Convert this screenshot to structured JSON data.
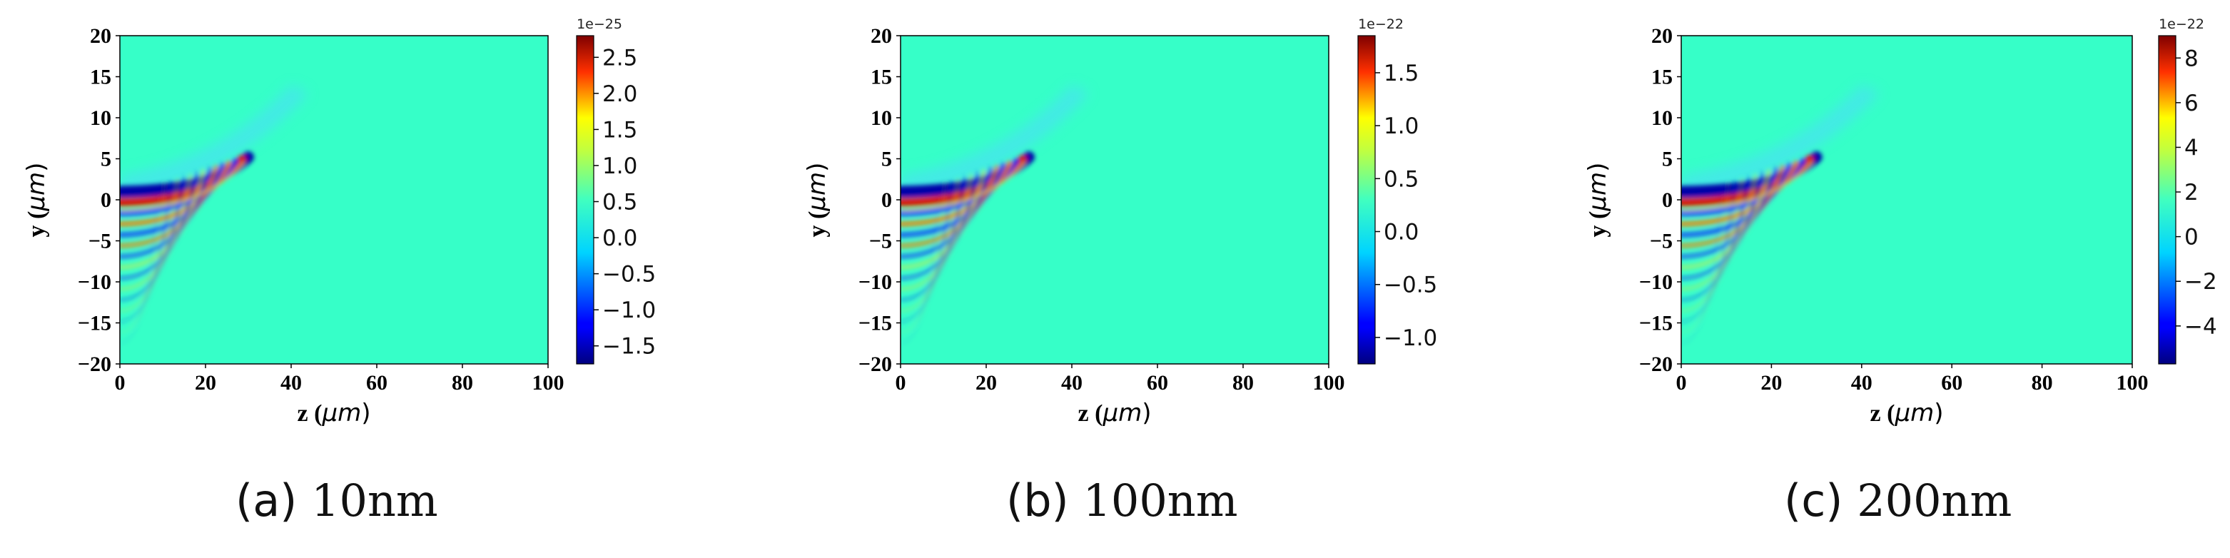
{
  "chart_data": [
    {
      "type": "heatmap",
      "xlabel_prefix": "z (",
      "xlabel_var": "μm",
      "xlabel_suffix": ")",
      "ylabel_prefix": "y (",
      "ylabel_var": "μm",
      "ylabel_suffix": ")",
      "xlim": [
        0,
        100
      ],
      "ylim": [
        -20,
        20
      ],
      "xticks": [
        "0",
        "20",
        "40",
        "60",
        "80",
        "100"
      ],
      "yticks": [
        "20",
        "15",
        "10",
        "5",
        "0",
        "−5",
        "−10",
        "−15",
        "−20"
      ],
      "colorbar": {
        "offset_label": "1e−25",
        "range": [
          -1.75,
          2.8
        ],
        "ticks": [
          {
            "value": 2.5,
            "label": "2.5"
          },
          {
            "value": 2.0,
            "label": "2.0"
          },
          {
            "value": 1.5,
            "label": "1.5"
          },
          {
            "value": 1.0,
            "label": "1.0"
          },
          {
            "value": 0.5,
            "label": "0.5"
          },
          {
            "value": 0.0,
            "label": "0.0"
          },
          {
            "value": -0.5,
            "label": "−0.5"
          },
          {
            "value": -1.0,
            "label": "−1.0"
          },
          {
            "value": -1.5,
            "label": "−1.5"
          }
        ]
      },
      "caption_letter": "(a)",
      "caption_text": "10nm"
    },
    {
      "type": "heatmap",
      "xlabel_prefix": "z (",
      "xlabel_var": "μm",
      "xlabel_suffix": ")",
      "ylabel_prefix": "y (",
      "ylabel_var": "μm",
      "ylabel_suffix": ")",
      "xlim": [
        0,
        100
      ],
      "ylim": [
        -20,
        20
      ],
      "xticks": [
        "0",
        "20",
        "40",
        "60",
        "80",
        "100"
      ],
      "yticks": [
        "20",
        "15",
        "10",
        "5",
        "0",
        "−5",
        "−10",
        "−15",
        "−20"
      ],
      "colorbar": {
        "offset_label": "1e−22",
        "range": [
          -1.25,
          1.85
        ],
        "ticks": [
          {
            "value": 1.5,
            "label": "1.5"
          },
          {
            "value": 1.0,
            "label": "1.0"
          },
          {
            "value": 0.5,
            "label": "0.5"
          },
          {
            "value": 0.0,
            "label": "0.0"
          },
          {
            "value": -0.5,
            "label": "−0.5"
          },
          {
            "value": -1.0,
            "label": "−1.0"
          }
        ]
      },
      "caption_letter": "(b)",
      "caption_text": "100nm"
    },
    {
      "type": "heatmap",
      "xlabel_prefix": "z (",
      "xlabel_var": "μm",
      "xlabel_suffix": ")",
      "ylabel_prefix": "y (",
      "ylabel_var": "μm",
      "ylabel_suffix": ")",
      "xlim": [
        0,
        100
      ],
      "ylim": [
        -20,
        20
      ],
      "xticks": [
        "0",
        "20",
        "40",
        "60",
        "80",
        "100"
      ],
      "yticks": [
        "20",
        "15",
        "10",
        "5",
        "0",
        "−5",
        "−10",
        "−15",
        "−20"
      ],
      "colorbar": {
        "offset_label": "1e−22",
        "range": [
          -5.7,
          9.0
        ],
        "ticks": [
          {
            "value": 8,
            "label": "8"
          },
          {
            "value": 6,
            "label": "6"
          },
          {
            "value": 4,
            "label": "4"
          },
          {
            "value": 2,
            "label": "2"
          },
          {
            "value": 0,
            "label": "0"
          },
          {
            "value": -2,
            "label": "−2"
          },
          {
            "value": -4,
            "label": "−4"
          }
        ]
      },
      "caption_letter": "(c)",
      "caption_text": "200nm"
    }
  ]
}
